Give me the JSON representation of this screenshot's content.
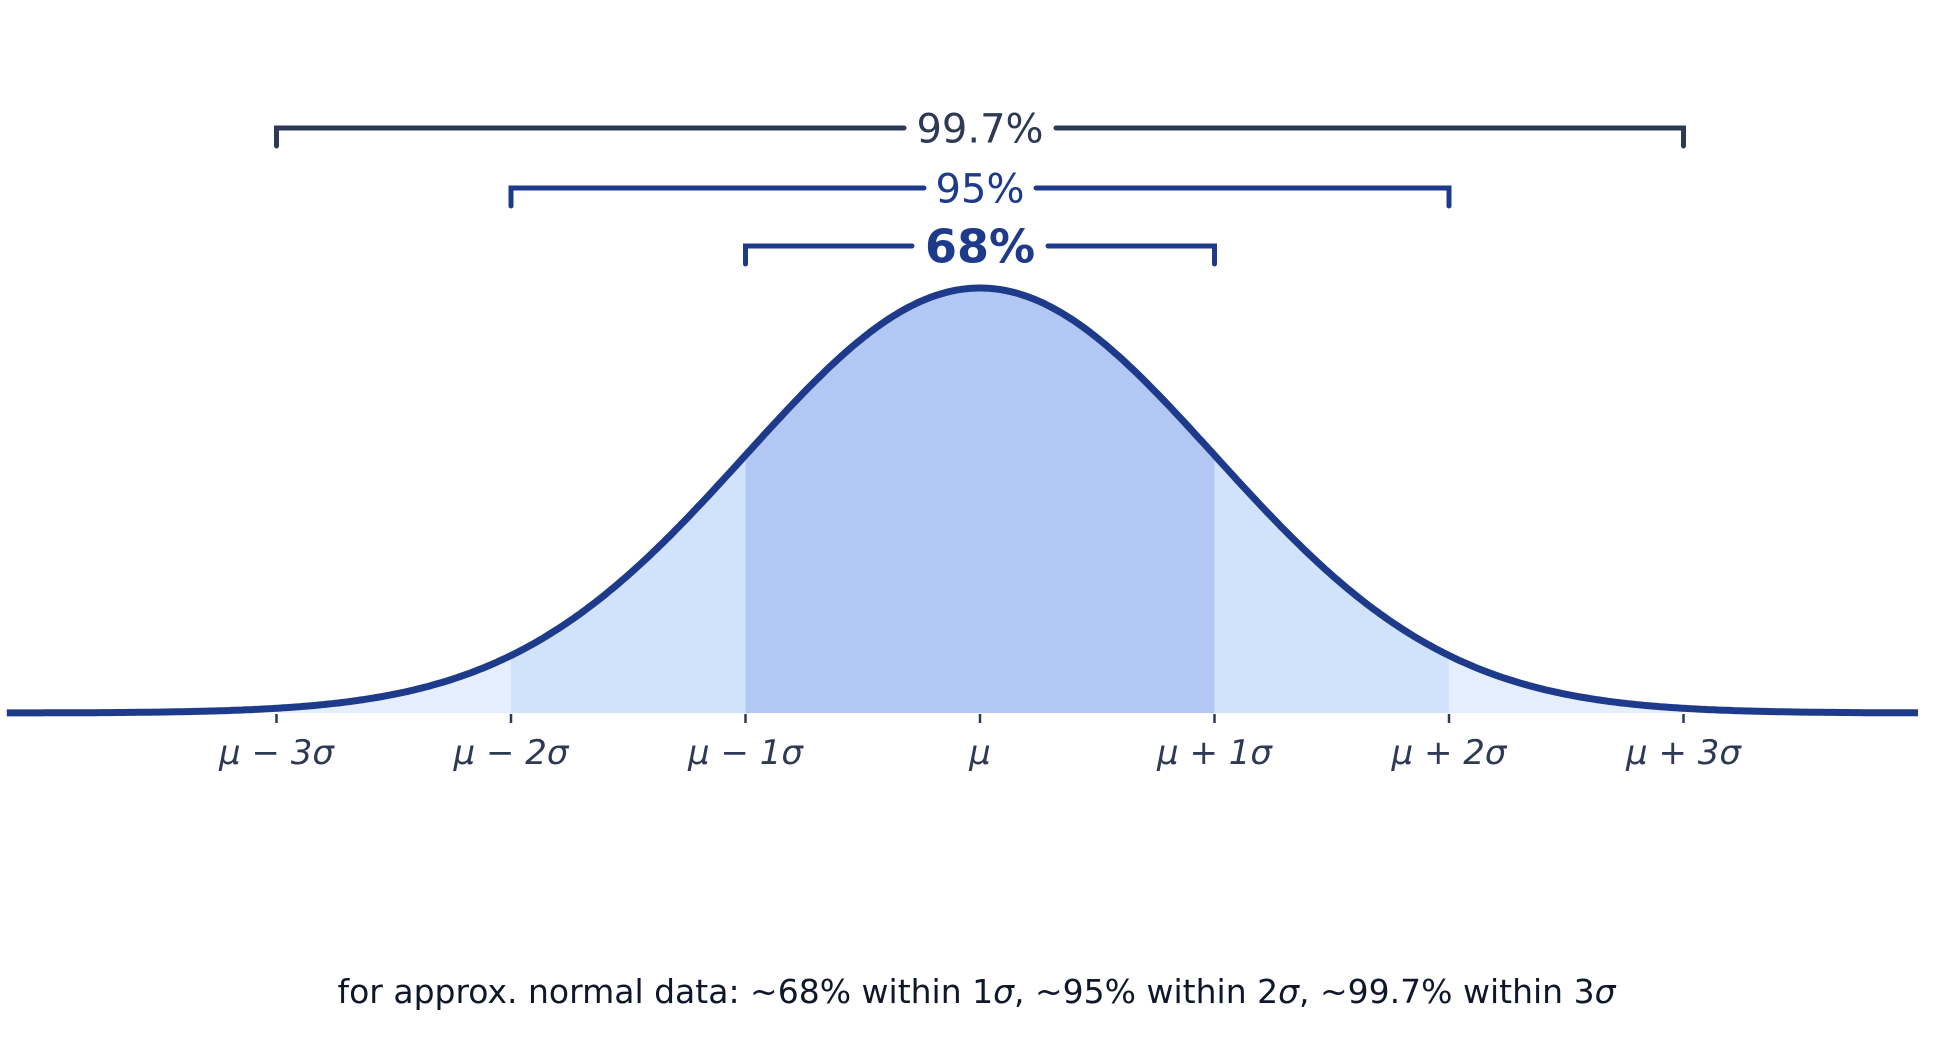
{
  "chart_data": {
    "type": "area",
    "distribution": "normal",
    "x_ticks": [
      -3,
      -2,
      -1,
      0,
      1,
      2,
      3
    ],
    "tick_labels": [
      "μ − 3σ",
      "μ − 2σ",
      "μ − 1σ",
      "μ",
      "μ + 1σ",
      "μ + 2σ",
      "μ + 3σ"
    ],
    "xlim": [
      -4.15,
      4.0
    ],
    "regions": [
      {
        "range": [
          -1,
          1
        ],
        "label": "68%",
        "color": "#b3c7f5",
        "label_bold": true,
        "bracket_color": "#1e3a8a"
      },
      {
        "range": [
          -2,
          2
        ],
        "label": "95%",
        "color": "#d0e3fb",
        "label_bold": false,
        "bracket_color": "#1e3a8a"
      },
      {
        "range": [
          -3,
          3
        ],
        "label": "99.7%",
        "color": "#e4eefd",
        "label_bold": false,
        "bracket_color": "#2e3a55"
      }
    ],
    "curve_color": "#1e3a8a",
    "grid": false
  },
  "caption": {
    "prefix": "for approx. normal data: ~68% within 1",
    "s1": "σ",
    "mid1": ", ~95% within 2",
    "s2": "σ",
    "mid2": ", ~99.7% within 3",
    "s3": "σ"
  }
}
